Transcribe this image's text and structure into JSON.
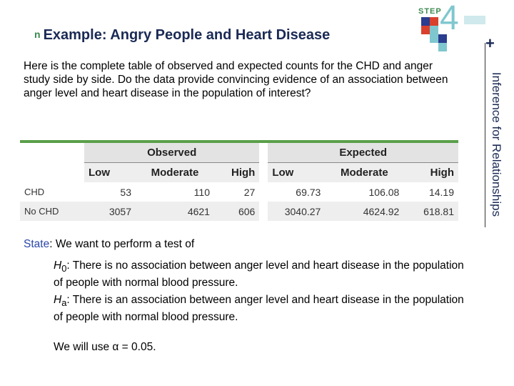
{
  "header": {
    "bullet": "n",
    "title": "Example: Angry People and Heart Disease",
    "side_text": "Inference for Relationships",
    "logo_step": "STEP",
    "logo_number": "4",
    "plus": "+"
  },
  "intro": "Here is the complete table of observed and expected counts for the CHD and anger study side by side. Do the data provide convincing evidence of an association between anger level and heart disease in the population of interest?",
  "table": {
    "observed_label": "Observed",
    "expected_label": "Expected",
    "columns": [
      "Low",
      "Moderate",
      "High"
    ],
    "rows": [
      {
        "label": "CHD",
        "observed": [
          "53",
          "110",
          "27"
        ],
        "expected": [
          "69.73",
          "106.08",
          "14.19"
        ]
      },
      {
        "label": "No CHD",
        "observed": [
          "3057",
          "4621",
          "606"
        ],
        "expected": [
          "3040.27",
          "4624.92",
          "618.81"
        ]
      }
    ]
  },
  "state": {
    "label": "State",
    "text": ": We want to perform a test of",
    "h0_symbol": "H",
    "h0_sub": "0",
    "h0_text": ": There is no association between anger level and heart disease in the population of people with normal blood pressure.",
    "ha_symbol": "H",
    "ha_sub": "a",
    "ha_text": ": There is an association between anger level and heart disease in the population of people with normal blood pressure.",
    "alpha_text": "We will use α = 0.05."
  }
}
